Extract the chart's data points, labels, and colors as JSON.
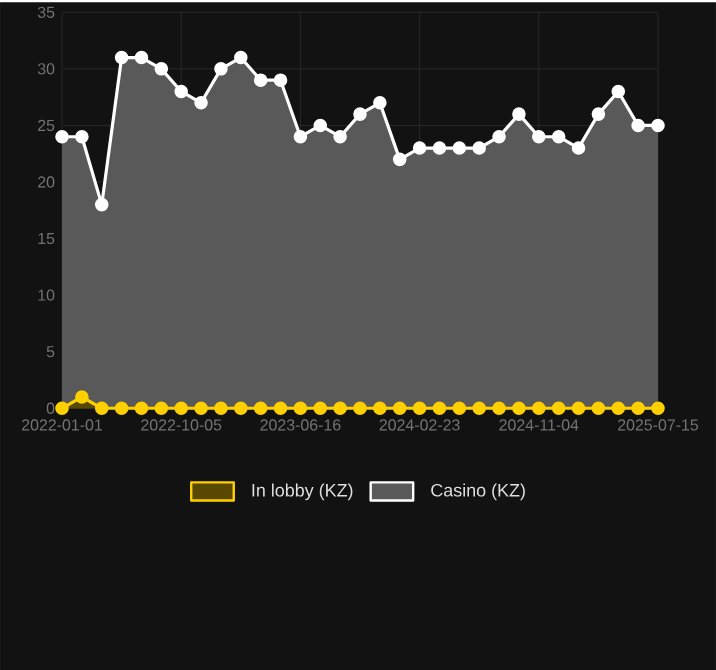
{
  "chart_data": {
    "type": "area",
    "categories": [
      "2022-01-01",
      null,
      null,
      null,
      null,
      null,
      "2022-10-05",
      null,
      null,
      null,
      null,
      null,
      "2023-06-16",
      null,
      null,
      null,
      null,
      null,
      "2024-02-23",
      null,
      null,
      null,
      null,
      null,
      "2024-11-04",
      null,
      null,
      null,
      null,
      null,
      "2025-07-15"
    ],
    "series": [
      {
        "name": "In lobby (KZ)",
        "color": "#ffd000",
        "values": [
          0,
          1,
          0,
          0,
          0,
          0,
          0,
          0,
          0,
          0,
          0,
          0,
          0,
          0,
          0,
          0,
          0,
          0,
          0,
          0,
          0,
          0,
          0,
          0,
          0,
          0,
          0,
          0,
          0,
          0,
          0
        ]
      },
      {
        "name": "Casino (KZ)",
        "color": "#ffffff",
        "values": [
          24,
          24,
          18,
          31,
          31,
          30,
          28,
          27,
          30,
          31,
          29,
          29,
          24,
          25,
          24,
          26,
          27,
          22,
          23,
          23,
          23,
          23,
          24,
          26,
          24,
          24,
          23,
          26,
          28,
          25,
          25
        ]
      }
    ],
    "ylim": [
      0,
      35
    ],
    "yticks": [
      0,
      5,
      10,
      15,
      20,
      25,
      30,
      35
    ],
    "grid": true,
    "legend": "bottom",
    "marker": "circle",
    "line_style": "solid"
  }
}
